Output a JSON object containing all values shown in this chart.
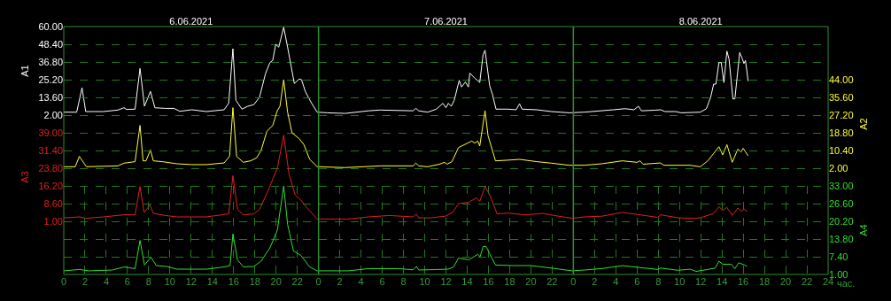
{
  "chart_data": [
    {
      "type": "line",
      "ylabel": "A1",
      "grid": true,
      "tick_labels": "y",
      "xlim": [
        "2021-06-06T00:00",
        "2021-06-09T00:00"
      ],
      "x2lim": [
        "2021-06-06T00:00",
        "2021-06-09T00:00"
      ],
      "x2ticks": [
        {
          "value": "2021-06-06T12:00",
          "label": "6.06.2021"
        },
        {
          "value": "2021-06-07T12:00",
          "label": "7.06.2021"
        },
        {
          "value": "2021-06-08T12:00",
          "label": "8.06.2021"
        }
      ],
      "ref_lines": [
        {
          "axis": "x",
          "value": "2021-06-07T00:00",
          "line_style": "solid"
        },
        {
          "axis": "x",
          "value": "2021-06-08T00:00",
          "line_style": "solid"
        }
      ],
      "ylim": [
        2,
        60
      ],
      "yticks": [
        {
          "value": 2,
          "label": "2.00"
        },
        {
          "value": 13.6,
          "label": "13.60"
        },
        {
          "value": 25.2,
          "label": "25.20"
        },
        {
          "value": 36.8,
          "label": "36.80"
        },
        {
          "value": 48.4,
          "label": "48.40"
        },
        {
          "value": 60,
          "label": "60.00"
        }
      ],
      "x": [
        "2021-06-06T00:00",
        "2021-06-06T01:13",
        "2021-06-06T01:43",
        "2021-06-06T02:04",
        "2021-06-06T03:43",
        "2021-06-06T05:06",
        "2021-06-06T05:40",
        "2021-06-06T05:55",
        "2021-06-06T06:43",
        "2021-06-06T07:11",
        "2021-06-06T07:36",
        "2021-06-06T08:10",
        "2021-06-06T08:35",
        "2021-06-06T09:34",
        "2021-06-06T10:23",
        "2021-06-06T10:56",
        "2021-06-06T12:04",
        "2021-06-06T13:26",
        "2021-06-06T15:06",
        "2021-06-06T15:32",
        "2021-06-06T15:56",
        "2021-06-06T16:13",
        "2021-06-06T16:47",
        "2021-06-06T17:20",
        "2021-06-06T17:54",
        "2021-06-06T18:26",
        "2021-06-06T19:00",
        "2021-06-06T19:25",
        "2021-06-06T19:41",
        "2021-06-06T19:58",
        "2021-06-06T20:15",
        "2021-06-06T20:43",
        "2021-06-06T21:05",
        "2021-06-06T21:43",
        "2021-06-06T22:11",
        "2021-06-06T22:24",
        "2021-06-06T22:45",
        "2021-06-06T23:19",
        "2021-06-06T23:52",
        "2021-06-07T00:50",
        "2021-06-07T02:30",
        "2021-06-07T04:43",
        "2021-06-07T05:50",
        "2021-06-07T08:54",
        "2021-06-07T09:10",
        "2021-06-07T09:26",
        "2021-06-07T10:17",
        "2021-06-07T11:06",
        "2021-06-07T11:43",
        "2021-06-07T12:00",
        "2021-06-07T12:13",
        "2021-06-07T12:30",
        "2021-06-07T12:47",
        "2021-06-07T13:15",
        "2021-06-07T13:28",
        "2021-06-07T13:50",
        "2021-06-07T14:07",
        "2021-06-07T14:15",
        "2021-06-07T14:43",
        "2021-06-07T15:11",
        "2021-06-07T15:30",
        "2021-06-07T15:41",
        "2021-06-07T16:07",
        "2021-06-07T16:23",
        "2021-06-07T16:43",
        "2021-06-07T17:47",
        "2021-06-07T18:37",
        "2021-06-07T18:56",
        "2021-06-07T19:10",
        "2021-06-07T20:34",
        "2021-06-07T21:56",
        "2021-06-07T23:37",
        "2021-06-08T01:00",
        "2021-06-08T03:47",
        "2021-06-08T04:53",
        "2021-06-08T05:43",
        "2021-06-08T06:08",
        "2021-06-08T06:25",
        "2021-06-08T07:40",
        "2021-06-08T08:13",
        "2021-06-08T08:38",
        "2021-06-08T09:37",
        "2021-06-08T10:10",
        "2021-06-08T11:58",
        "2021-06-08T12:32",
        "2021-06-08T12:56",
        "2021-06-08T13:13",
        "2021-06-08T13:26",
        "2021-06-08T13:43",
        "2021-06-08T13:56",
        "2021-06-08T14:11",
        "2021-06-08T14:28",
        "2021-06-08T14:40",
        "2021-06-08T15:02",
        "2021-06-08T15:13",
        "2021-06-08T15:40",
        "2021-06-08T15:56",
        "2021-06-08T16:04",
        "2021-06-08T16:13",
        "2021-06-08T16:28"
      ],
      "series": [
        {
          "color": "#ffffff",
          "values": [
            3.9,
            3.9,
            20.0,
            4.3,
            4.3,
            5.3,
            6.8,
            5.7,
            5.9,
            32.6,
            7.8,
            17.5,
            6.8,
            6.4,
            6.4,
            4.5,
            5.5,
            4.3,
            5.5,
            9.7,
            45.5,
            11.7,
            5.9,
            7.8,
            8.8,
            13.6,
            29.1,
            36.4,
            37.8,
            48.4,
            46.5,
            59.6,
            46.5,
            22.7,
            25.6,
            25.2,
            17.5,
            10.1,
            3.9,
            3.5,
            3.1,
            4.8,
            5.3,
            4.8,
            6.4,
            4.8,
            3.9,
            5.9,
            9.7,
            6.8,
            9.7,
            7.8,
            11.7,
            24.8,
            20.4,
            23.7,
            20.4,
            29.5,
            26.2,
            23.4,
            41.6,
            44.5,
            21.3,
            15.5,
            5.9,
            5.9,
            5.5,
            9.4,
            5.9,
            5.5,
            4.3,
            3.5,
            3.9,
            5.5,
            6.2,
            5.5,
            7.8,
            4.8,
            5.2,
            5.5,
            4.3,
            4.3,
            3.5,
            3.9,
            6.2,
            13.6,
            22.3,
            22.3,
            36.4,
            36.4,
            23.3,
            43.9,
            38.7,
            12.6,
            12.6,
            43.0,
            38.7,
            35.8,
            37.8,
            24.2
          ]
        }
      ]
    },
    {
      "type": "line",
      "ylabel": "A2",
      "grid": true,
      "tick_labels": "y",
      "xlim": [
        "2021-06-06T00:00",
        "2021-06-09T00:00"
      ],
      "ylim": [
        2,
        44
      ],
      "yticks": [
        {
          "value": 2,
          "label": "2.00"
        },
        {
          "value": 10.4,
          "label": "10.40"
        },
        {
          "value": 18.8,
          "label": "18.80"
        },
        {
          "value": 27.2,
          "label": "27.20"
        },
        {
          "value": 35.6,
          "label": "35.60"
        },
        {
          "value": 44,
          "label": "44.00"
        }
      ],
      "x": [
        "2021-06-06T00:00",
        "2021-06-06T01:05",
        "2021-06-06T01:28",
        "2021-06-06T02:08",
        "2021-06-06T05:06",
        "2021-06-06T05:40",
        "2021-06-06T06:43",
        "2021-06-06T07:11",
        "2021-06-06T07:28",
        "2021-06-06T07:45",
        "2021-06-06T08:10",
        "2021-06-06T08:26",
        "2021-06-06T09:17",
        "2021-06-06T10:40",
        "2021-06-06T12:04",
        "2021-06-06T13:26",
        "2021-06-06T15:06",
        "2021-06-06T15:37",
        "2021-06-06T15:56",
        "2021-06-06T16:17",
        "2021-06-06T16:55",
        "2021-06-06T17:36",
        "2021-06-06T18:10",
        "2021-06-06T18:35",
        "2021-06-06T19:08",
        "2021-06-06T19:41",
        "2021-06-06T20:07",
        "2021-06-06T20:22",
        "2021-06-06T20:43",
        "2021-06-06T21:05",
        "2021-06-06T21:30",
        "2021-06-06T22:11",
        "2021-06-06T22:37",
        "2021-06-06T23:10",
        "2021-06-06T23:52",
        "2021-06-07T02:30",
        "2021-06-07T05:50",
        "2021-06-07T08:54",
        "2021-06-07T09:10",
        "2021-06-07T09:26",
        "2021-06-07T10:17",
        "2021-06-07T11:23",
        "2021-06-07T11:52",
        "2021-06-07T12:06",
        "2021-06-07T12:34",
        "2021-06-07T13:11",
        "2021-06-07T14:02",
        "2021-06-07T14:26",
        "2021-06-07T14:43",
        "2021-06-07T15:00",
        "2021-06-07T15:11",
        "2021-06-07T15:41",
        "2021-06-07T15:58",
        "2021-06-07T16:40",
        "2021-06-07T17:47",
        "2021-06-07T18:56",
        "2021-06-07T20:34",
        "2021-06-07T21:56",
        "2021-06-07T23:37",
        "2021-06-08T01:00",
        "2021-06-08T02:40",
        "2021-06-08T04:37",
        "2021-06-08T06:00",
        "2021-06-08T06:17",
        "2021-06-08T06:34",
        "2021-06-08T08:13",
        "2021-06-08T08:30",
        "2021-06-08T11:00",
        "2021-06-08T11:58",
        "2021-06-08T12:40",
        "2021-06-08T13:13",
        "2021-06-08T13:43",
        "2021-06-08T14:04",
        "2021-06-08T14:28",
        "2021-06-08T14:58",
        "2021-06-08T15:30",
        "2021-06-08T15:47",
        "2021-06-08T16:00",
        "2021-06-08T16:28"
      ],
      "series": [
        {
          "color": "#ffff33",
          "values": [
            2.7,
            2.7,
            7.6,
            2.7,
            3.1,
            4.4,
            5.1,
            22.3,
            5.5,
            5.5,
            10.7,
            5.5,
            5.1,
            4.1,
            3.7,
            3.7,
            4.5,
            7.6,
            30.7,
            7.6,
            4.8,
            5.5,
            6.9,
            10.4,
            19.5,
            22.3,
            29.3,
            31.4,
            44.0,
            28.6,
            18.8,
            16.0,
            13.2,
            6.2,
            2.7,
            2.3,
            3.1,
            3.1,
            4.4,
            3.1,
            2.7,
            3.9,
            4.8,
            3.9,
            5.1,
            11.8,
            13.9,
            14.9,
            13.9,
            14.9,
            12.5,
            29.3,
            17.4,
            5.5,
            5.8,
            6.2,
            5.1,
            4.4,
            3.4,
            3.4,
            4.1,
            5.5,
            4.8,
            5.5,
            3.9,
            4.5,
            3.4,
            3.4,
            2.7,
            5.5,
            9.0,
            12.2,
            8.3,
            13.2,
            4.8,
            11.1,
            9.7,
            11.4,
            7.9
          ]
        }
      ]
    },
    {
      "type": "line",
      "ylabel": "A3",
      "grid": true,
      "tick_labels": "y",
      "xlim": [
        "2021-06-06T00:00",
        "2021-06-09T00:00"
      ],
      "ylim": [
        1,
        39
      ],
      "yticks": [
        {
          "value": 1,
          "label": "1.00"
        },
        {
          "value": 8.6,
          "label": "8.60"
        },
        {
          "value": 16.2,
          "label": "16.20"
        },
        {
          "value": 23.8,
          "label": "23.80"
        },
        {
          "value": 31.4,
          "label": "31.40"
        },
        {
          "value": 39,
          "label": "39.00"
        }
      ],
      "x": [
        "2021-06-06T00:00",
        "2021-06-06T01:30",
        "2021-06-06T02:04",
        "2021-06-06T03:43",
        "2021-06-06T05:40",
        "2021-06-06T06:43",
        "2021-06-06T07:11",
        "2021-06-06T07:34",
        "2021-06-06T08:07",
        "2021-06-06T08:26",
        "2021-06-06T09:34",
        "2021-06-06T10:40",
        "2021-06-06T13:26",
        "2021-06-06T15:32",
        "2021-06-06T15:56",
        "2021-06-06T16:22",
        "2021-06-06T16:55",
        "2021-06-06T17:54",
        "2021-06-06T18:26",
        "2021-06-06T19:08",
        "2021-06-06T20:07",
        "2021-06-06T20:43",
        "2021-06-06T21:13",
        "2021-06-06T21:47",
        "2021-06-06T22:20",
        "2021-06-06T23:02",
        "2021-06-06T23:52",
        "2021-06-07T02:47",
        "2021-06-07T04:43",
        "2021-06-07T06:40",
        "2021-06-07T08:54",
        "2021-06-07T09:13",
        "2021-06-07T09:26",
        "2021-06-07T10:34",
        "2021-06-07T11:56",
        "2021-06-07T12:38",
        "2021-06-07T13:11",
        "2021-06-07T14:10",
        "2021-06-07T14:52",
        "2021-06-07T15:11",
        "2021-06-07T15:41",
        "2021-06-07T16:07",
        "2021-06-07T16:49",
        "2021-06-07T17:55",
        "2021-06-07T19:26",
        "2021-06-07T21:06",
        "2021-06-07T22:12",
        "2021-06-07T23:53",
        "2021-06-08T01:00",
        "2021-06-08T02:40",
        "2021-06-08T04:37",
        "2021-06-08T06:00",
        "2021-06-08T07:56",
        "2021-06-08T08:13",
        "2021-06-08T09:53",
        "2021-06-08T11:17",
        "2021-06-08T11:58",
        "2021-06-08T13:13",
        "2021-06-08T13:43",
        "2021-06-08T14:04",
        "2021-06-08T14:28",
        "2021-06-08T14:58",
        "2021-06-08T15:30",
        "2021-06-08T15:47",
        "2021-06-08T16:08",
        "2021-06-08T16:22"
      ],
      "series": [
        {
          "color": "#e02020",
          "values": [
            2.5,
            2.9,
            2.3,
            2.9,
            3.8,
            3.8,
            15.9,
            4.8,
            8.0,
            4.4,
            3.5,
            2.9,
            2.9,
            4.2,
            20.6,
            6.1,
            3.8,
            4.2,
            6.1,
            13.0,
            23.8,
            38.0,
            21.3,
            12.4,
            10.1,
            6.1,
            2.0,
            2.0,
            2.9,
            3.5,
            2.9,
            4.2,
            2.5,
            2.5,
            3.2,
            4.8,
            8.6,
            9.2,
            11.1,
            9.6,
            15.9,
            12.4,
            4.2,
            4.5,
            3.8,
            4.4,
            3.5,
            2.3,
            2.9,
            3.2,
            4.8,
            4.0,
            2.7,
            3.8,
            2.5,
            2.3,
            2.5,
            4.4,
            7.3,
            5.7,
            7.0,
            3.5,
            6.7,
            5.4,
            6.3,
            5.1
          ]
        }
      ]
    },
    {
      "type": "line",
      "ylabel": "A4",
      "grid": true,
      "xlabel": "час.",
      "xlim": [
        "2021-06-06T00:00",
        "2021-06-09T00:00"
      ],
      "xticks": [
        {
          "value": "2021-06-06T00:00",
          "label": "0"
        },
        {
          "value": "2021-06-06T02:00",
          "label": "2"
        },
        {
          "value": "2021-06-06T04:00",
          "label": "4"
        },
        {
          "value": "2021-06-06T06:00",
          "label": "6"
        },
        {
          "value": "2021-06-06T08:00",
          "label": "8"
        },
        {
          "value": "2021-06-06T10:00",
          "label": "10"
        },
        {
          "value": "2021-06-06T12:00",
          "label": "12"
        },
        {
          "value": "2021-06-06T14:00",
          "label": "14"
        },
        {
          "value": "2021-06-06T16:00",
          "label": "16"
        },
        {
          "value": "2021-06-06T18:00",
          "label": "18"
        },
        {
          "value": "2021-06-06T20:00",
          "label": "20"
        },
        {
          "value": "2021-06-06T22:00",
          "label": "22"
        },
        {
          "value": "2021-06-07T00:00",
          "label": "0"
        },
        {
          "value": "2021-06-07T02:00",
          "label": "2"
        },
        {
          "value": "2021-06-07T04:00",
          "label": "4"
        },
        {
          "value": "2021-06-07T06:00",
          "label": "6"
        },
        {
          "value": "2021-06-07T08:00",
          "label": "8"
        },
        {
          "value": "2021-06-07T10:00",
          "label": "10"
        },
        {
          "value": "2021-06-07T12:00",
          "label": "12"
        },
        {
          "value": "2021-06-07T14:00",
          "label": "14"
        },
        {
          "value": "2021-06-07T16:00",
          "label": "16"
        },
        {
          "value": "2021-06-07T18:00",
          "label": "18"
        },
        {
          "value": "2021-06-07T20:00",
          "label": "20"
        },
        {
          "value": "2021-06-07T22:00",
          "label": "22"
        },
        {
          "value": "2021-06-08T00:00",
          "label": "0"
        },
        {
          "value": "2021-06-08T02:00",
          "label": "2"
        },
        {
          "value": "2021-06-08T04:00",
          "label": "4"
        },
        {
          "value": "2021-06-08T06:00",
          "label": "6"
        },
        {
          "value": "2021-06-08T08:00",
          "label": "8"
        },
        {
          "value": "2021-06-08T10:00",
          "label": "10"
        },
        {
          "value": "2021-06-08T12:00",
          "label": "12"
        },
        {
          "value": "2021-06-08T14:00",
          "label": "14"
        },
        {
          "value": "2021-06-08T16:00",
          "label": "16"
        },
        {
          "value": "2021-06-08T18:00",
          "label": "18"
        },
        {
          "value": "2021-06-08T20:00",
          "label": "20"
        },
        {
          "value": "2021-06-08T22:00",
          "label": "22"
        },
        {
          "value": "2021-06-09T00:00",
          "label": "24"
        }
      ],
      "ylim": [
        1,
        33
      ],
      "yticks": [
        {
          "value": 1,
          "label": "1.00"
        },
        {
          "value": 7.4,
          "label": "7.40"
        },
        {
          "value": 13.8,
          "label": "13.80"
        },
        {
          "value": 20.2,
          "label": "20.20"
        },
        {
          "value": 26.6,
          "label": "26.60"
        },
        {
          "value": 33,
          "label": "33.00"
        }
      ],
      "x": [
        "2021-06-06T00:00",
        "2021-06-06T01:30",
        "2021-06-06T02:20",
        "2021-06-06T04:34",
        "2021-06-06T05:40",
        "2021-06-06T06:43",
        "2021-06-06T07:11",
        "2021-06-06T07:36",
        "2021-06-06T08:13",
        "2021-06-06T08:43",
        "2021-06-06T09:41",
        "2021-06-06T10:40",
        "2021-06-06T13:26",
        "2021-06-06T15:06",
        "2021-06-06T15:40",
        "2021-06-06T15:56",
        "2021-06-06T16:22",
        "2021-06-06T16:55",
        "2021-06-06T17:54",
        "2021-06-06T18:35",
        "2021-06-06T19:25",
        "2021-06-06T20:07",
        "2021-06-06T20:43",
        "2021-06-06T21:05",
        "2021-06-06T21:38",
        "2021-06-06T22:20",
        "2021-06-06T23:10",
        "2021-06-06T23:52",
        "2021-06-07T02:47",
        "2021-06-07T04:43",
        "2021-06-07T07:30",
        "2021-06-07T08:54",
        "2021-06-07T09:13",
        "2021-06-07T09:26",
        "2021-06-07T12:12",
        "2021-06-07T12:43",
        "2021-06-07T13:11",
        "2021-06-07T14:10",
        "2021-06-07T15:00",
        "2021-06-07T15:13",
        "2021-06-07T15:30",
        "2021-06-07T15:47",
        "2021-06-07T16:07",
        "2021-06-07T16:40",
        "2021-06-07T18:20",
        "2021-06-07T20:00",
        "2021-06-07T21:56",
        "2021-06-07T23:53",
        "2021-06-08T01:00",
        "2021-06-08T02:40",
        "2021-06-08T04:37",
        "2021-06-08T06:00",
        "2021-06-08T07:56",
        "2021-06-08T08:13",
        "2021-06-08T09:53",
        "2021-06-08T11:00",
        "2021-06-08T11:34",
        "2021-06-08T12:40",
        "2021-06-08T13:22",
        "2021-06-08T13:43",
        "2021-06-08T14:04",
        "2021-06-08T14:53",
        "2021-06-08T15:13",
        "2021-06-08T15:35",
        "2021-06-08T16:08",
        "2021-06-08T16:22"
      ],
      "series": [
        {
          "color": "#33dd33",
          "values": [
            2.3,
            2.8,
            2.3,
            2.6,
            3.7,
            3.1,
            13.3,
            4.4,
            7.2,
            4.2,
            3.9,
            2.9,
            2.9,
            3.7,
            4.2,
            15.6,
            6.3,
            3.7,
            3.9,
            5.8,
            10.6,
            17.0,
            33.0,
            19.1,
            9.5,
            7.9,
            3.7,
            2.3,
            2.3,
            3.1,
            3.1,
            2.7,
            3.9,
            2.6,
            2.9,
            3.7,
            6.9,
            6.3,
            8.3,
            7.4,
            11.1,
            11.1,
            8.5,
            4.4,
            4.2,
            4.2,
            3.3,
            2.3,
            2.6,
            3.1,
            4.2,
            3.6,
            2.8,
            3.3,
            2.5,
            2.9,
            2.1,
            2.8,
            3.3,
            5.8,
            4.7,
            4.7,
            3.1,
            5.2,
            4.4,
            3.9
          ]
        }
      ]
    }
  ]
}
